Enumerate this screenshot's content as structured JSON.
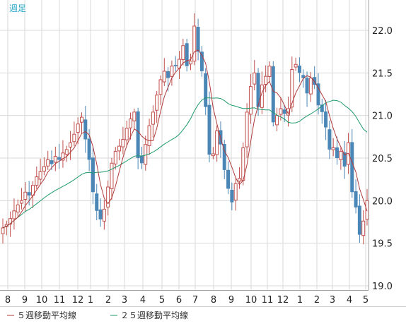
{
  "chart_data": {
    "type": "candlestick",
    "timeframe_label": "週足",
    "y_ticks": [
      "22.0",
      "21.5",
      "21.0",
      "20.5",
      "20.0",
      "19.5",
      "19.0"
    ],
    "ylim": [
      19.0,
      22.5
    ],
    "x_ticks": [
      "8",
      "9",
      "10",
      "11",
      "12",
      "1",
      "2",
      "3",
      "4",
      "5",
      "6",
      "7",
      "8",
      "9",
      "10",
      "11",
      "12",
      "1",
      "2",
      "3",
      "4",
      "5"
    ],
    "grid": true,
    "legend": [
      {
        "label": "５週移動平均線",
        "color": "#b03a3a"
      },
      {
        "label": "２５週移動平均線",
        "color": "#1e9a6a"
      }
    ],
    "colors": {
      "up": "#c0504d",
      "down": "#4a86b6",
      "ma5": "#b03a3a",
      "ma25": "#1e9a6a",
      "grid": "#d8d8d8",
      "axis": "#a0a0a0"
    },
    "closes": [
      19.68,
      19.72,
      19.79,
      19.88,
      19.95,
      20.0,
      20.1,
      20.06,
      20.18,
      20.28,
      20.34,
      20.4,
      20.48,
      20.43,
      20.52,
      20.48,
      20.56,
      20.6,
      20.68,
      20.78,
      20.9,
      20.98,
      20.72,
      20.48,
      20.1,
      19.88,
      19.78,
      19.9,
      20.16,
      20.44,
      20.58,
      20.64,
      20.72,
      20.85,
      20.96,
      21.04,
      20.5,
      20.44,
      20.66,
      20.88,
      21.04,
      21.24,
      21.42,
      21.52,
      21.44,
      21.58,
      21.58,
      21.66,
      21.82,
      21.58,
      21.64,
      22.05,
      21.75,
      21.52,
      21.1,
      20.54,
      20.55,
      20.82,
      20.66,
      20.36,
      20.14,
      19.98,
      20.2,
      20.26,
      20.62,
      21.04,
      21.34,
      21.5,
      21.1,
      21.36,
      21.46,
      21.58,
      20.92,
      21.0,
      21.08,
      21.02,
      21.08,
      21.54,
      21.6,
      21.5,
      21.44,
      21.26,
      21.44,
      21.36,
      21.12,
      21.04,
      20.86,
      20.6,
      20.62,
      20.5,
      20.58,
      20.4,
      20.68,
      20.1,
      19.92,
      19.6,
      19.76,
      20.0
    ]
  }
}
